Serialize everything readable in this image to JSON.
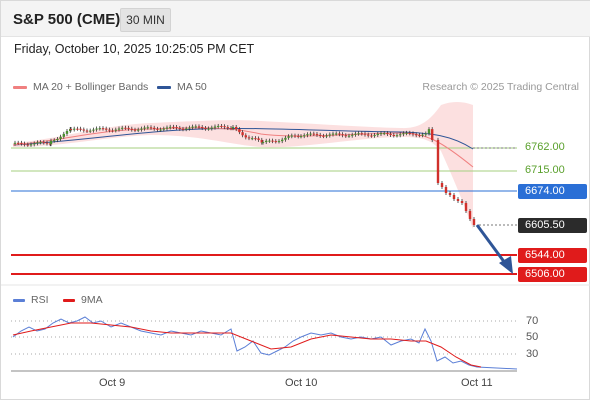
{
  "header": {
    "title": "S&P 500 (CME)",
    "timeframe": "30 MIN"
  },
  "datetime": "Friday, October 10, 2025 10:25:05 PM CET",
  "legend": {
    "items": [
      {
        "label": "MA 20 + Bollinger Bands",
        "color": "#f08080"
      },
      {
        "label": "MA 50",
        "color": "#2f5597"
      }
    ],
    "copyright": "Research © 2025 Trading Central"
  },
  "levels": {
    "l1": "6762.00",
    "l2": "6715.00",
    "l3": "6674.00",
    "last": "6605.50",
    "l4": "6544.00",
    "l5": "6506.00"
  },
  "rsi": {
    "legend": [
      {
        "label": "RSI",
        "color": "#5b7fd6"
      },
      {
        "label": "9MA",
        "color": "#e01b1b"
      }
    ],
    "ticks": [
      "70",
      "50",
      "30"
    ]
  },
  "xaxis": {
    "ticks": [
      "Oct 9",
      "Oct 10",
      "Oct 11"
    ]
  },
  "colors": {
    "up": "#4a8f2e",
    "down": "#d0302b",
    "blue_level": "#2a6fd6",
    "red_level": "#e01b1b",
    "green_level": "#a5cf7f",
    "arrow": "#2f5597"
  }
}
